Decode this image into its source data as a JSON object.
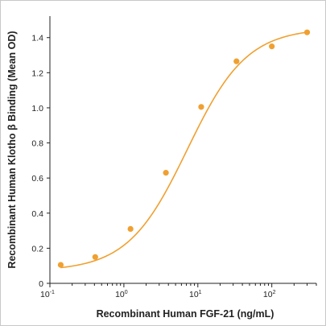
{
  "chart_data": {
    "type": "scatter",
    "xlabel": "Recombinant Human FGF-21 (ng/mL)",
    "ylabel": "Recombinant Human Klotho β Binding (Mean OD)",
    "xscale": "log",
    "xlim": [
      0.1,
      400
    ],
    "ylim": [
      0,
      1.5
    ],
    "grid": false,
    "legend": "none",
    "x_ticks": [
      {
        "base": "10",
        "exp": "-1",
        "value": 0.1
      },
      {
        "base": "10",
        "exp": "0",
        "value": 1
      },
      {
        "base": "10",
        "exp": "1",
        "value": 10
      },
      {
        "base": "10",
        "exp": "2",
        "value": 100
      }
    ],
    "y_ticks": [
      "0",
      "0.2",
      "0.4",
      "0.6",
      "0.8",
      "1.0",
      "1.2",
      "1.4"
    ],
    "series": [
      {
        "color": "#F0A030",
        "points": [
          {
            "x": 0.14,
            "y": 0.105
          },
          {
            "x": 0.41,
            "y": 0.15
          },
          {
            "x": 1.23,
            "y": 0.31
          },
          {
            "x": 3.7,
            "y": 0.63
          },
          {
            "x": 11.1,
            "y": 1.005
          },
          {
            "x": 33.3,
            "y": 1.265
          },
          {
            "x": 100,
            "y": 1.35
          },
          {
            "x": 300,
            "y": 1.43
          }
        ],
        "fit": "4PL"
      }
    ]
  }
}
